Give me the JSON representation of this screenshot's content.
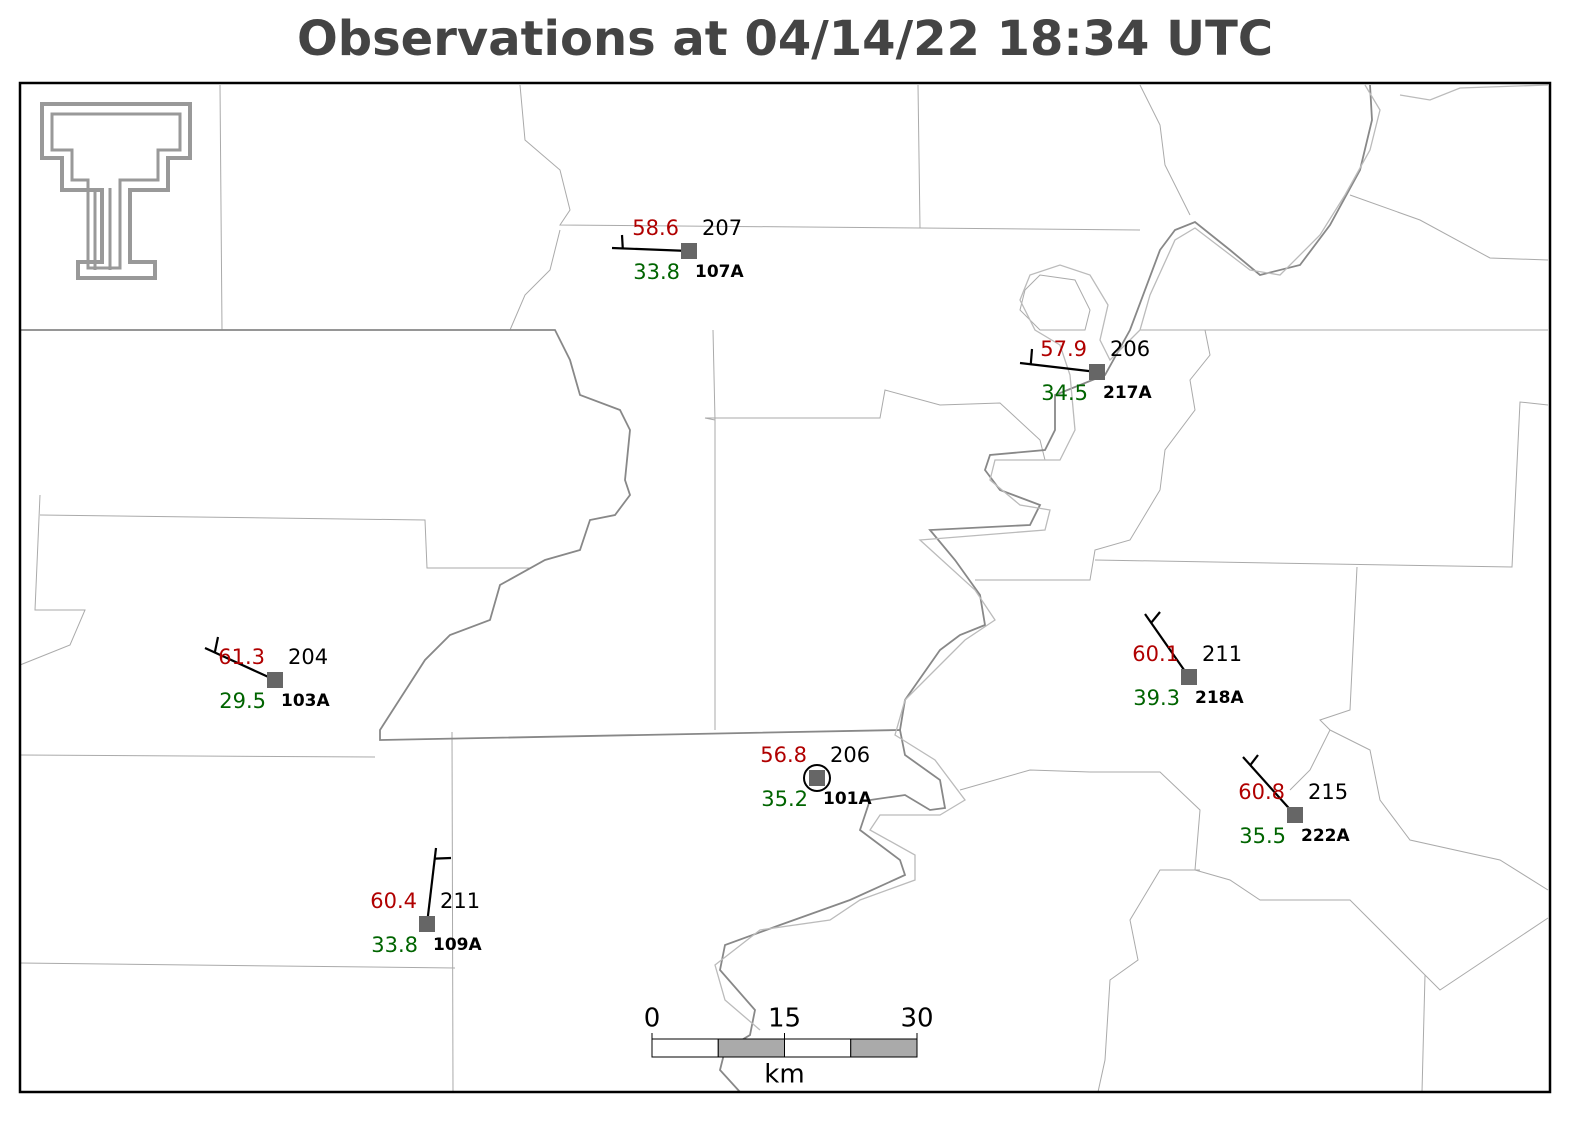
{
  "title": "Observations at 04/14/22 18:34 UTC",
  "stations": [
    {
      "id": "107A",
      "temperature": 58.6,
      "dewpoint": 33.8,
      "pressure": 207
    },
    {
      "id": "217A",
      "temperature": 57.9,
      "dewpoint": 34.5,
      "pressure": 206
    },
    {
      "id": "103A",
      "temperature": 61.3,
      "dewpoint": 29.5,
      "pressure": 204
    },
    {
      "id": "101A",
      "temperature": 56.8,
      "dewpoint": 35.2,
      "pressure": 206
    },
    {
      "id": "218A",
      "temperature": 60.1,
      "dewpoint": 39.3,
      "pressure": 211
    },
    {
      "id": "222A",
      "temperature": 60.8,
      "dewpoint": 35.5,
      "pressure": 215
    },
    {
      "id": "109A",
      "temperature": 60.4,
      "dewpoint": 33.8,
      "pressure": 211
    }
  ],
  "scale_bar": {
    "ticks": [
      0,
      15,
      30
    ],
    "unit": "km"
  }
}
